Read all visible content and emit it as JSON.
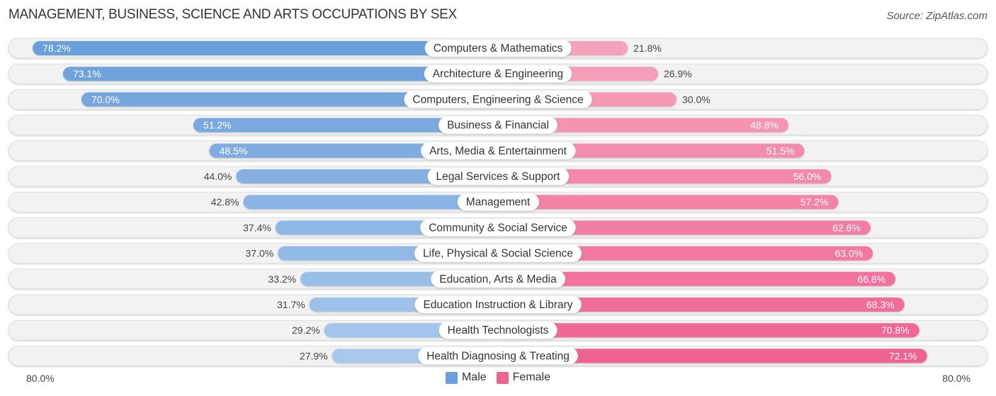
{
  "title": "MANAGEMENT, BUSINESS, SCIENCE AND ARTS OCCUPATIONS BY SEX",
  "source": "Source: ZipAtlas.com",
  "axis": {
    "left_label": "80.0%",
    "right_label": "80.0%"
  },
  "legend": {
    "male_label": "Male",
    "female_label": "Female"
  },
  "colors": {
    "male_dark": "#6a9fdb",
    "male_light": "#a8c8ec",
    "female_light": "#f5a3bc",
    "female_dark": "#f06292",
    "track": "#f2f2f2"
  },
  "chart_data": {
    "type": "bar",
    "orientation": "horizontal-diverging",
    "title": "MANAGEMENT, BUSINESS, SCIENCE AND ARTS OCCUPATIONS BY SEX",
    "xlabel": "",
    "ylabel": "",
    "xlim": [
      -80,
      80
    ],
    "legend_position": "bottom-center",
    "categories": [
      "Computers & Mathematics",
      "Architecture & Engineering",
      "Computers, Engineering & Science",
      "Business & Financial",
      "Arts, Media & Entertainment",
      "Legal Services & Support",
      "Management",
      "Community & Social Service",
      "Life, Physical & Social Science",
      "Education, Arts & Media",
      "Education Instruction & Library",
      "Health Technologists",
      "Health Diagnosing & Treating"
    ],
    "series": [
      {
        "name": "Male",
        "values": [
          78.2,
          73.1,
          70.0,
          51.2,
          48.5,
          44.0,
          42.8,
          37.4,
          37.0,
          33.2,
          31.7,
          29.2,
          27.9
        ]
      },
      {
        "name": "Female",
        "values": [
          21.8,
          26.9,
          30.0,
          48.8,
          51.5,
          56.0,
          57.2,
          62.6,
          63.0,
          66.8,
          68.3,
          70.8,
          72.1
        ]
      }
    ]
  }
}
